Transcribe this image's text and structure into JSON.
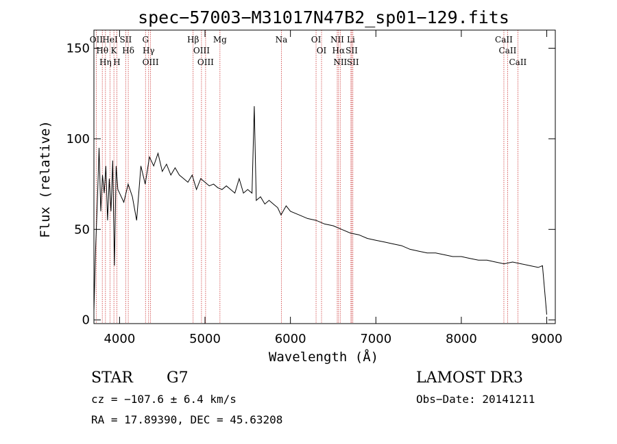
{
  "chart_data": {
    "type": "line",
    "title": "spec−57003−M31017N47B2_sp01−129.fits",
    "xlabel": "Wavelength (Å)",
    "ylabel": "Flux (relative)",
    "xlim": [
      3700,
      9100
    ],
    "ylim": [
      -2,
      160
    ],
    "x_ticks": [
      4000,
      5000,
      6000,
      7000,
      8000,
      9000
    ],
    "y_ticks": [
      0,
      50,
      100,
      150
    ],
    "x_tick_labels": [
      "4000",
      "5000",
      "6000",
      "7000",
      "8000",
      "9000"
    ],
    "y_tick_labels": [
      "0",
      "50",
      "100",
      "150"
    ],
    "spectrum": {
      "name": "flux",
      "x": [
        3700,
        3720,
        3740,
        3760,
        3780,
        3800,
        3820,
        3840,
        3860,
        3880,
        3900,
        3920,
        3940,
        3960,
        3980,
        4000,
        4050,
        4100,
        4150,
        4200,
        4250,
        4300,
        4350,
        4400,
        4450,
        4500,
        4550,
        4600,
        4650,
        4700,
        4750,
        4800,
        4850,
        4900,
        4950,
        5000,
        5050,
        5100,
        5150,
        5200,
        5250,
        5300,
        5350,
        5400,
        5450,
        5500,
        5550,
        5577,
        5600,
        5650,
        5700,
        5750,
        5800,
        5850,
        5890,
        5950,
        6000,
        6100,
        6200,
        6300,
        6400,
        6500,
        6600,
        6700,
        6800,
        6900,
        7000,
        7100,
        7200,
        7300,
        7400,
        7500,
        7600,
        7700,
        7800,
        7900,
        8000,
        8100,
        8200,
        8300,
        8400,
        8500,
        8600,
        8700,
        8800,
        8900,
        8950,
        9000
      ],
      "y": [
        5,
        40,
        65,
        95,
        60,
        80,
        70,
        85,
        55,
        78,
        60,
        88,
        30,
        85,
        72,
        70,
        65,
        75,
        68,
        55,
        85,
        75,
        90,
        85,
        92,
        82,
        86,
        80,
        84,
        80,
        78,
        76,
        80,
        72,
        78,
        76,
        74,
        75,
        73,
        72,
        74,
        72,
        70,
        78,
        70,
        72,
        70,
        118,
        66,
        68,
        64,
        66,
        64,
        62,
        58,
        63,
        60,
        58,
        56,
        55,
        53,
        52,
        50,
        48,
        47,
        45,
        44,
        43,
        42,
        41,
        39,
        38,
        37,
        37,
        36,
        35,
        35,
        34,
        33,
        33,
        32,
        31,
        32,
        31,
        30,
        29,
        30,
        3
      ]
    },
    "emission_lines": [
      {
        "label": "OII",
        "wavelength": 3727
      },
      {
        "label": "Hθ",
        "wavelength": 3798
      },
      {
        "label": "Hη",
        "wavelength": 3835
      },
      {
        "label": "HeI",
        "wavelength": 3889
      },
      {
        "label": "K",
        "wavelength": 3934
      },
      {
        "label": "H",
        "wavelength": 3969
      },
      {
        "label": "SII",
        "wavelength": 4072
      },
      {
        "label": "Hδ",
        "wavelength": 4102
      },
      {
        "label": "G",
        "wavelength": 4304
      },
      {
        "label": "Hγ",
        "wavelength": 4340
      },
      {
        "label": "OIII",
        "wavelength": 4363
      },
      {
        "label": "Hβ",
        "wavelength": 4861
      },
      {
        "label": "OIII",
        "wavelength": 4959
      },
      {
        "label": "OIII",
        "wavelength": 5007
      },
      {
        "label": "Mg",
        "wavelength": 5175
      },
      {
        "label": "Na",
        "wavelength": 5894
      },
      {
        "label": "OI",
        "wavelength": 6300
      },
      {
        "label": "OI",
        "wavelength": 6364
      },
      {
        "label": "NII",
        "wavelength": 6548
      },
      {
        "label": "Hα",
        "wavelength": 6563
      },
      {
        "label": "NII",
        "wavelength": 6583
      },
      {
        "label": "Li",
        "wavelength": 6708
      },
      {
        "label": "SII",
        "wavelength": 6717
      },
      {
        "label": "SII",
        "wavelength": 6731
      },
      {
        "label": "CaII",
        "wavelength": 8498
      },
      {
        "label": "CaII",
        "wavelength": 8542
      },
      {
        "label": "CaII",
        "wavelength": 8662
      }
    ]
  },
  "info": {
    "class": "STAR",
    "subclass": "G7",
    "survey": "LAMOST DR3",
    "cz": "cz = −107.6 ± 6.4 km/s",
    "obs_date": "Obs−Date: 20141211",
    "coords": "RA =  17.89390, DEC =  45.63208"
  },
  "colors": {
    "spectrum": "#000000",
    "line_marker": "#cc3333"
  }
}
